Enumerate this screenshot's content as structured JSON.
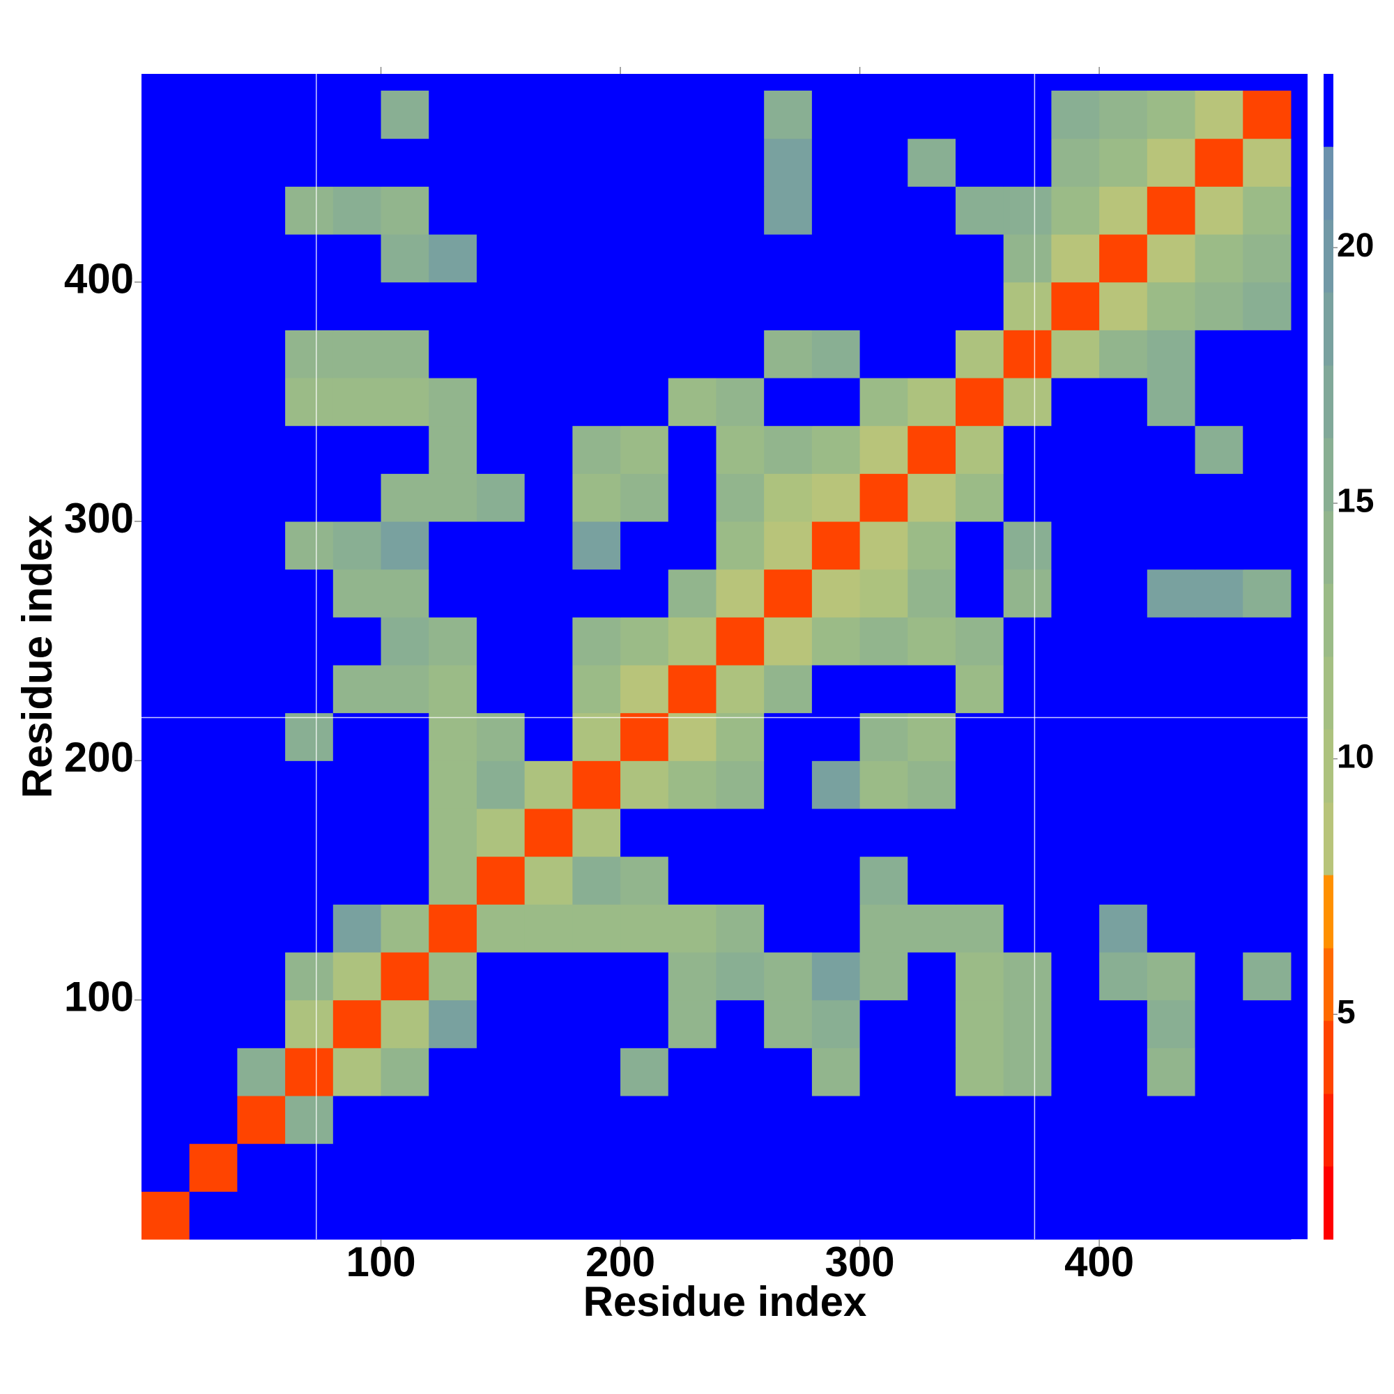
{
  "chart_data": {
    "type": "heatmap",
    "x_label": "Residue index",
    "y_label": "Residue index",
    "bins": [
      0,
      20,
      40,
      60,
      80,
      100,
      120,
      140,
      160,
      180,
      200,
      220,
      240,
      260,
      280,
      300,
      320,
      340,
      360,
      380,
      400,
      420,
      440,
      460,
      480
    ],
    "xlim": [
      0,
      487
    ],
    "ylim": [
      0,
      487
    ],
    "xticks": [
      100,
      200,
      300,
      400
    ],
    "yticks": [
      100,
      200,
      300,
      400
    ],
    "guide_lines": {
      "x": [
        73,
        373
      ],
      "y": [
        218
      ]
    },
    "z": [
      [
        4,
        25,
        25,
        25,
        25,
        25,
        25,
        25,
        25,
        25,
        25,
        25,
        25,
        25,
        25,
        25,
        25,
        25,
        25,
        25,
        25,
        25,
        25,
        25
      ],
      [
        25,
        4,
        25,
        25,
        25,
        25,
        25,
        25,
        25,
        25,
        25,
        25,
        25,
        25,
        25,
        25,
        25,
        25,
        25,
        25,
        25,
        25,
        25,
        25
      ],
      [
        25,
        25,
        4,
        16,
        25,
        25,
        25,
        25,
        25,
        25,
        25,
        25,
        25,
        25,
        25,
        25,
        25,
        25,
        25,
        25,
        25,
        25,
        25,
        25
      ],
      [
        25,
        25,
        16,
        4,
        10,
        14,
        25,
        25,
        25,
        25,
        16,
        25,
        25,
        25,
        14,
        25,
        25,
        12,
        14,
        25,
        25,
        14,
        25,
        25
      ],
      [
        25,
        25,
        25,
        10,
        4,
        10,
        18,
        25,
        25,
        25,
        25,
        14,
        25,
        14,
        16,
        25,
        25,
        12,
        14,
        25,
        25,
        16,
        25,
        25
      ],
      [
        25,
        25,
        25,
        14,
        10,
        4,
        12,
        25,
        25,
        25,
        25,
        14,
        16,
        14,
        18,
        14,
        25,
        12,
        14,
        25,
        16,
        14,
        25,
        16
      ],
      [
        25,
        25,
        25,
        25,
        18,
        12,
        4,
        12,
        12,
        12,
        12,
        12,
        14,
        25,
        25,
        14,
        14,
        14,
        25,
        25,
        18,
        25,
        25,
        25
      ],
      [
        25,
        25,
        25,
        25,
        25,
        25,
        12,
        4,
        10,
        16,
        14,
        25,
        25,
        25,
        25,
        16,
        25,
        25,
        25,
        25,
        25,
        25,
        25,
        25
      ],
      [
        25,
        25,
        25,
        25,
        25,
        25,
        12,
        10,
        4,
        10,
        25,
        25,
        25,
        25,
        25,
        25,
        25,
        25,
        25,
        25,
        25,
        25,
        25,
        25
      ],
      [
        25,
        25,
        25,
        25,
        25,
        25,
        12,
        16,
        10,
        4,
        10,
        12,
        14,
        25,
        18,
        12,
        14,
        25,
        25,
        25,
        25,
        25,
        25,
        25
      ],
      [
        25,
        25,
        25,
        16,
        25,
        25,
        12,
        14,
        25,
        10,
        4,
        8,
        12,
        25,
        25,
        14,
        12,
        25,
        25,
        25,
        25,
        25,
        25,
        25
      ],
      [
        25,
        25,
        25,
        25,
        14,
        14,
        12,
        25,
        25,
        12,
        8,
        4,
        10,
        14,
        25,
        25,
        25,
        12,
        25,
        25,
        25,
        25,
        25,
        25
      ],
      [
        25,
        25,
        25,
        25,
        25,
        16,
        14,
        25,
        25,
        14,
        12,
        10,
        4,
        8,
        12,
        14,
        12,
        14,
        25,
        25,
        25,
        25,
        25,
        25
      ],
      [
        25,
        25,
        25,
        25,
        14,
        14,
        25,
        25,
        25,
        25,
        25,
        14,
        8,
        4,
        8,
        10,
        14,
        25,
        14,
        25,
        25,
        18,
        18,
        16
      ],
      [
        25,
        25,
        25,
        14,
        16,
        18,
        25,
        25,
        25,
        18,
        25,
        25,
        12,
        8,
        4,
        8,
        12,
        25,
        16,
        25,
        25,
        25,
        25,
        25
      ],
      [
        25,
        25,
        25,
        25,
        25,
        14,
        14,
        16,
        25,
        12,
        14,
        25,
        14,
        10,
        8,
        4,
        8,
        12,
        25,
        25,
        25,
        25,
        25,
        25
      ],
      [
        25,
        25,
        25,
        25,
        25,
        25,
        14,
        25,
        25,
        14,
        12,
        25,
        12,
        14,
        12,
        8,
        4,
        10,
        25,
        25,
        25,
        25,
        16,
        25
      ],
      [
        25,
        25,
        25,
        12,
        12,
        12,
        14,
        25,
        25,
        25,
        25,
        12,
        14,
        25,
        25,
        12,
        10,
        4,
        10,
        25,
        25,
        16,
        25,
        25
      ],
      [
        25,
        25,
        25,
        14,
        14,
        14,
        25,
        25,
        25,
        25,
        25,
        25,
        25,
        14,
        16,
        25,
        25,
        10,
        4,
        10,
        14,
        16,
        25,
        25
      ],
      [
        25,
        25,
        25,
        25,
        25,
        25,
        25,
        25,
        25,
        25,
        25,
        25,
        25,
        25,
        25,
        25,
        25,
        25,
        10,
        4,
        8,
        12,
        14,
        16
      ],
      [
        25,
        25,
        25,
        25,
        25,
        16,
        18,
        25,
        25,
        25,
        25,
        25,
        25,
        25,
        25,
        25,
        25,
        25,
        14,
        8,
        4,
        8,
        12,
        14
      ],
      [
        25,
        25,
        25,
        14,
        16,
        14,
        25,
        25,
        25,
        25,
        25,
        25,
        25,
        18,
        25,
        25,
        25,
        16,
        16,
        12,
        8,
        4,
        8,
        12
      ],
      [
        25,
        25,
        25,
        25,
        25,
        25,
        25,
        25,
        25,
        25,
        25,
        25,
        25,
        18,
        25,
        25,
        16,
        25,
        25,
        14,
        12,
        8,
        4,
        8
      ],
      [
        25,
        25,
        25,
        25,
        25,
        16,
        25,
        25,
        25,
        25,
        25,
        25,
        25,
        16,
        25,
        25,
        25,
        25,
        25,
        16,
        14,
        12,
        8,
        4
      ]
    ],
    "clim": [
      0.6,
      23.4
    ],
    "levels": [
      0.6,
      2.03,
      3.45,
      4.88,
      6.3,
      7.73,
      9.15,
      10.58,
      12.0,
      13.43,
      14.85,
      16.28,
      17.7,
      19.13,
      20.55,
      21.98,
      23.4
    ],
    "colors": [
      "#ff0000",
      "#ff2200",
      "#ff4400",
      "#ff6a00",
      "#ff9000",
      "#b8c47a",
      "#adc27e",
      "#a4bf82",
      "#9bbb87",
      "#92b58d",
      "#89af93",
      "#81a899",
      "#79a19f",
      "#7299a6",
      "#6b91ad",
      "#0000ff"
    ],
    "colorbar_ticks": [
      5,
      10,
      15,
      20
    ]
  }
}
